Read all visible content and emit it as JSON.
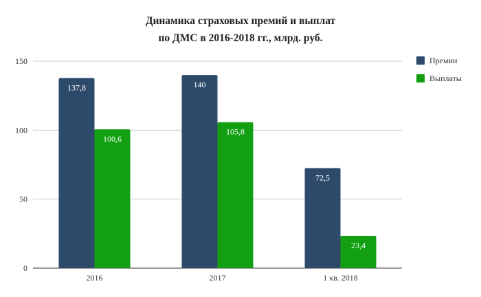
{
  "chart_data": {
    "type": "bar",
    "title": "Динамика страховых премий и выплат",
    "subtitle": "по ДМС в 2016-2018 гг., млрд. руб.",
    "categories": [
      "2016",
      "2017",
      "1 кв. 2018"
    ],
    "series": [
      {
        "name": "Премии",
        "color": "#2e4a6b",
        "values": [
          137.8,
          140,
          72.5
        ],
        "labels": [
          "137,8",
          "140",
          "72,5"
        ]
      },
      {
        "name": "Выплаты",
        "color": "#12a012",
        "values": [
          100.6,
          105.8,
          23.4
        ],
        "labels": [
          "100,6",
          "105,8",
          "23,4"
        ]
      }
    ],
    "ylim": [
      0,
      150
    ],
    "yticks": [
      0,
      50,
      100,
      150
    ],
    "grid": true,
    "legend_position": "right-top"
  }
}
